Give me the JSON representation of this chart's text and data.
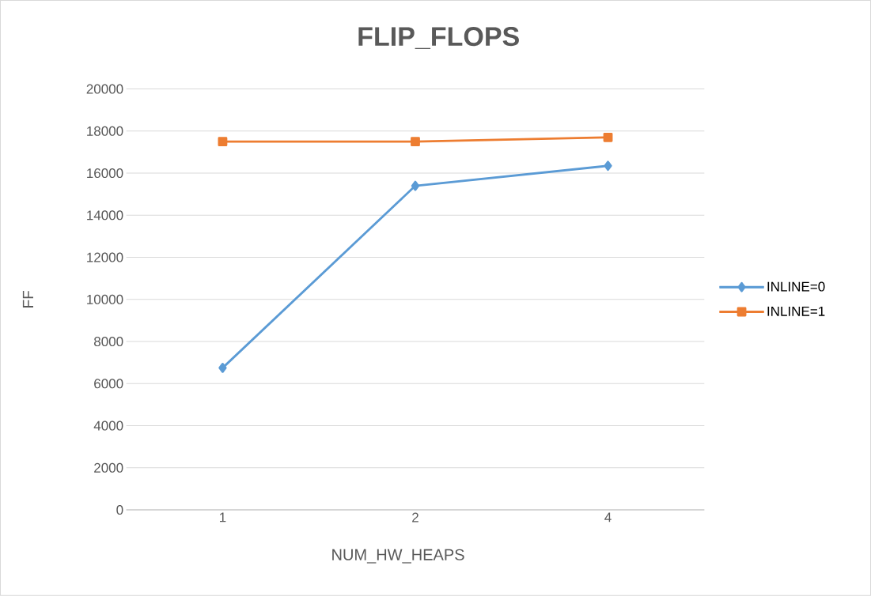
{
  "chart_data": {
    "type": "line",
    "title": "FLIP_FLOPS",
    "xlabel": "NUM_HW_HEAPS",
    "ylabel": "FF",
    "categories": [
      "1",
      "2",
      "4"
    ],
    "series": [
      {
        "name": "INLINE=0",
        "color": "#5b9bd5",
        "marker": "diamond",
        "values": [
          6750,
          15400,
          16350
        ]
      },
      {
        "name": "INLINE=1",
        "color": "#ed7d31",
        "marker": "square",
        "values": [
          17500,
          17500,
          17700
        ]
      }
    ],
    "ylim": [
      0,
      20000
    ],
    "yticks": [
      0,
      2000,
      4000,
      6000,
      8000,
      10000,
      12000,
      14000,
      16000,
      18000,
      20000
    ],
    "grid": "y",
    "legend": "right"
  }
}
